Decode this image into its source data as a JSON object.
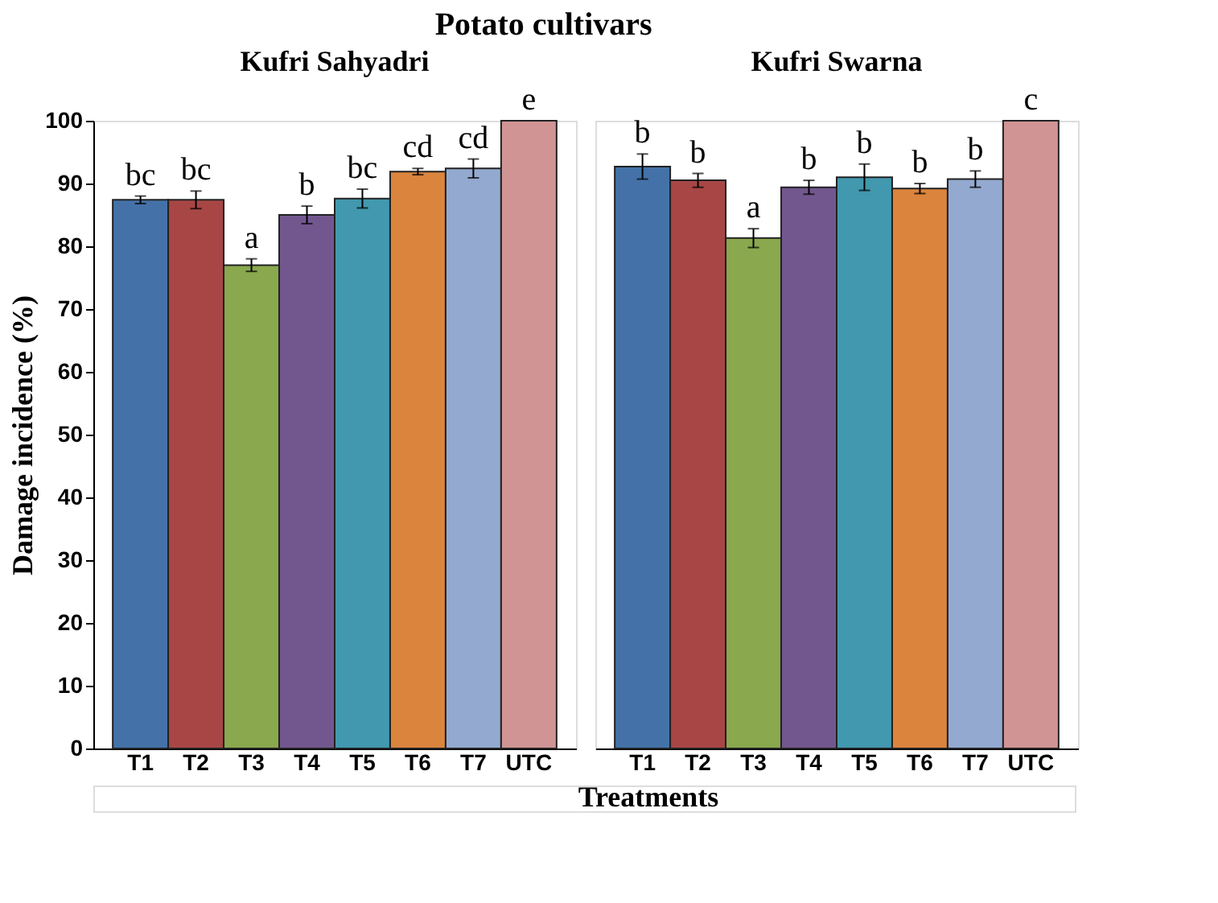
{
  "chart_data": [
    {
      "type": "bar",
      "title": "Kufri Sahyadri",
      "ylabel": "Damage  incidence (%)",
      "xlabel": "Treatments",
      "categories": [
        "T1",
        "T2",
        "T3",
        "T4",
        "T5",
        "T6",
        "T7",
        "UTC"
      ],
      "values": [
        87.4,
        87.4,
        77.0,
        85.0,
        87.6,
        91.9,
        92.4,
        100
      ],
      "errors": [
        0.6,
        1.4,
        1.0,
        1.4,
        1.5,
        0.5,
        1.5,
        null
      ],
      "colors": [
        "#4472a8",
        "#a84646",
        "#8aa84e",
        "#72578f",
        "#4298ae",
        "#db843d",
        "#93a9d0",
        "#d09494"
      ],
      "ylim": [
        0,
        100
      ],
      "yticks": [
        0,
        10,
        20,
        30,
        40,
        50,
        60,
        70,
        80,
        90,
        100
      ],
      "grid": false,
      "annotations": [
        "Potato cultivars",
        {
          "text": "bc",
          "x": "T1",
          "y": 88.0
        },
        {
          "text": "bc",
          "x": "T2",
          "y": 88.8
        },
        {
          "text": "a",
          "x": "T3",
          "y": 78.0
        },
        {
          "text": "b",
          "x": "T4",
          "y": 86.4
        },
        {
          "text": "bc",
          "x": "T5",
          "y": 89.1
        },
        {
          "text": "cd",
          "x": "T6",
          "y": 92.4
        },
        {
          "text": "cd",
          "x": "T7",
          "y": 93.9
        },
        {
          "text": "e",
          "x": "UTC",
          "y": 100
        }
      ]
    },
    {
      "type": "bar",
      "title": "Kufri Swarna",
      "categories": [
        "T1",
        "T2",
        "T3",
        "T4",
        "T5",
        "T6",
        "T7",
        "UTC"
      ],
      "values": [
        92.7,
        90.5,
        81.3,
        89.4,
        91.0,
        89.2,
        90.7,
        100
      ],
      "errors": [
        2.0,
        1.1,
        1.5,
        1.1,
        2.1,
        0.8,
        1.3,
        null
      ],
      "colors": [
        "#4472a8",
        "#a84646",
        "#8aa84e",
        "#72578f",
        "#4298ae",
        "#db843d",
        "#93a9d0",
        "#d09494"
      ],
      "ylim": [
        0,
        100
      ],
      "tick_labels": "x",
      "grid": false,
      "annotations": [
        {
          "text": "b",
          "x": "T1",
          "y": 94.7
        },
        {
          "text": "b",
          "x": "T2",
          "y": 91.6
        },
        {
          "text": "a",
          "x": "T3",
          "y": 82.8
        },
        {
          "text": "b",
          "x": "T4",
          "y": 90.5
        },
        {
          "text": "b",
          "x": "T5",
          "y": 93.1
        },
        {
          "text": "b",
          "x": "T6",
          "y": 90.0
        },
        {
          "text": "b",
          "x": "T7",
          "y": 92.0
        },
        {
          "text": "c",
          "x": "UTC",
          "y": 100
        }
      ]
    }
  ]
}
